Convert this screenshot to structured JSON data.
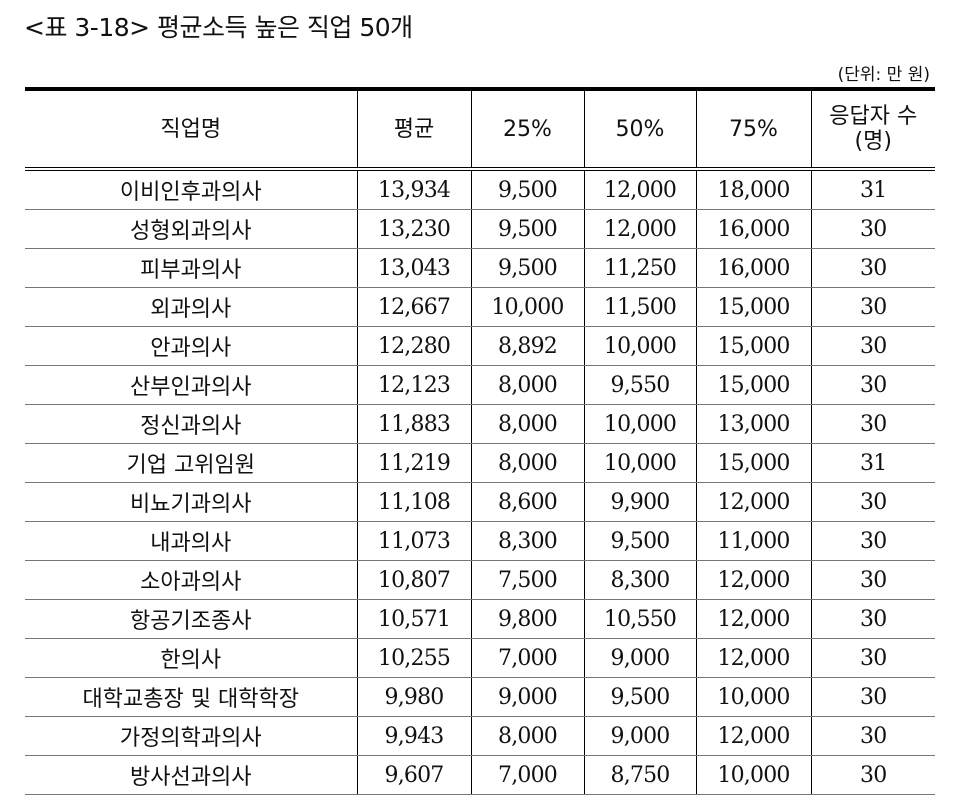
{
  "caption": "<표 3-18> 평균소득 높은 직업 50개",
  "unit": "(단위: 만 원)",
  "columns": [
    "직업명",
    "평균",
    "25%",
    "50%",
    "75%",
    "응답자 수\n(명)"
  ],
  "rows": [
    [
      "이비인후과의사",
      "13,934",
      "9,500",
      "12,000",
      "18,000",
      "31"
    ],
    [
      "성형외과의사",
      "13,230",
      "9,500",
      "12,000",
      "16,000",
      "30"
    ],
    [
      "피부과의사",
      "13,043",
      "9,500",
      "11,250",
      "16,000",
      "30"
    ],
    [
      "외과의사",
      "12,667",
      "10,000",
      "11,500",
      "15,000",
      "30"
    ],
    [
      "안과의사",
      "12,280",
      "8,892",
      "10,000",
      "15,000",
      "30"
    ],
    [
      "산부인과의사",
      "12,123",
      "8,000",
      "9,550",
      "15,000",
      "30"
    ],
    [
      "정신과의사",
      "11,883",
      "8,000",
      "10,000",
      "13,000",
      "30"
    ],
    [
      "기업 고위임원",
      "11,219",
      "8,000",
      "10,000",
      "15,000",
      "31"
    ],
    [
      "비뇨기과의사",
      "11,108",
      "8,600",
      "9,900",
      "12,000",
      "30"
    ],
    [
      "내과의사",
      "11,073",
      "8,300",
      "9,500",
      "11,000",
      "30"
    ],
    [
      "소아과의사",
      "10,807",
      "7,500",
      "8,300",
      "12,000",
      "30"
    ],
    [
      "항공기조종사",
      "10,571",
      "9,800",
      "10,550",
      "12,000",
      "30"
    ],
    [
      "한의사",
      "10,255",
      "7,000",
      "9,000",
      "12,000",
      "30"
    ],
    [
      "대학교총장 및 대학학장",
      "9,980",
      "9,000",
      "9,500",
      "10,000",
      "30"
    ],
    [
      "가정의학과의사",
      "9,943",
      "8,000",
      "9,000",
      "12,000",
      "30"
    ],
    [
      "방사선과의사",
      "9,607",
      "7,000",
      "8,750",
      "10,000",
      "30"
    ]
  ]
}
